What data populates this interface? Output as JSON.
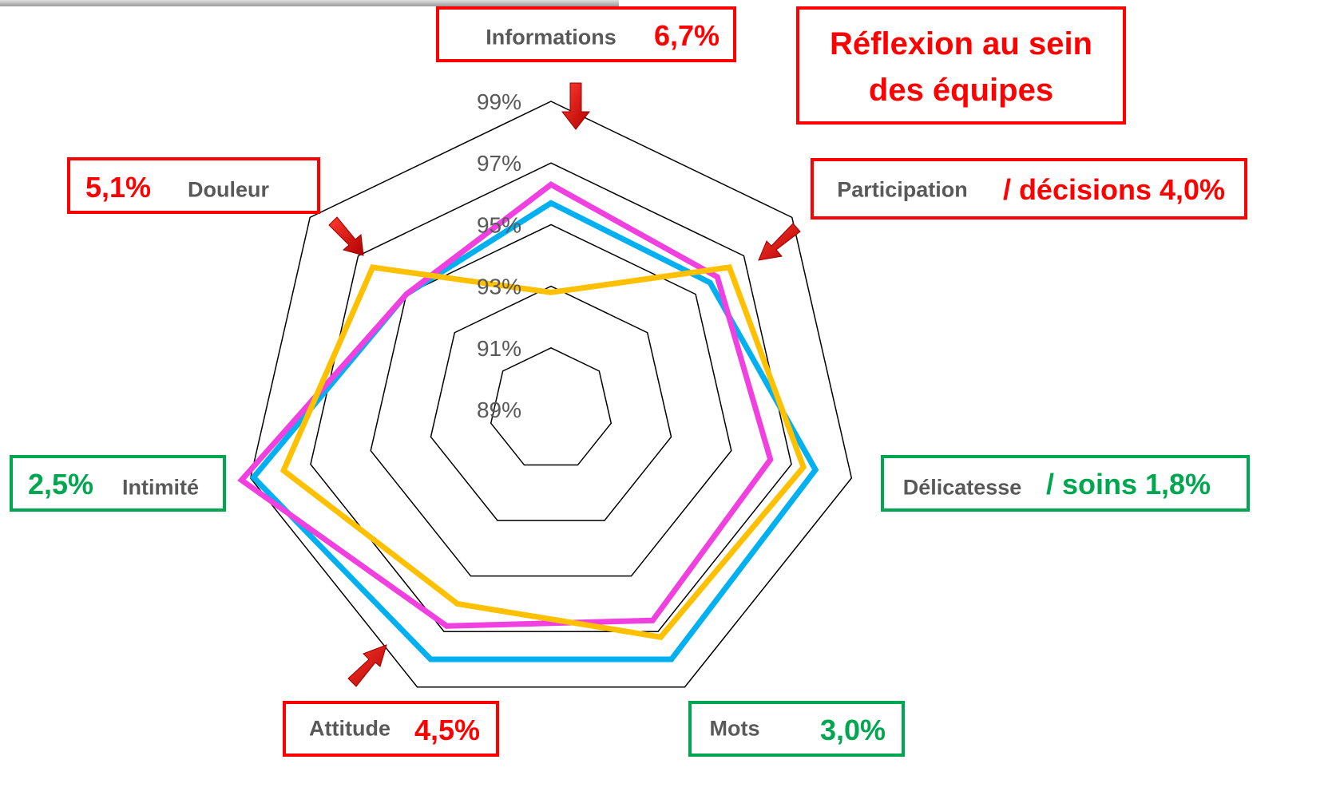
{
  "chart_data": {
    "type": "radar",
    "title": "Réflexion au sein des équipes",
    "categories": [
      "Informations",
      "Participation",
      "Délicatesse",
      "Mots",
      "Attitude",
      "Intimité",
      "Douleur"
    ],
    "annotations": [
      {
        "text": "6,7%",
        "color": "#ff0000"
      },
      {
        "text": "/ décisions 4,0%",
        "color": "#ff0000"
      },
      {
        "text": "/ soins 1,8%",
        "color": "#00a650"
      },
      {
        "text": "3,0%",
        "color": "#00a650"
      },
      {
        "text": "4,5%",
        "color": "#ff0000"
      },
      {
        "text": "2,5%",
        "color": "#00a650"
      },
      {
        "text": "5,1%",
        "color": "#ff0000"
      }
    ],
    "ylim": [
      89,
      99
    ],
    "yticks": [
      {
        "value": 89,
        "label": "89%"
      },
      {
        "value": 91,
        "label": "91%"
      },
      {
        "value": 93,
        "label": "93%"
      },
      {
        "value": 95,
        "label": "95%"
      },
      {
        "value": 97,
        "label": "97%"
      },
      {
        "value": 99,
        "label": "99%"
      }
    ],
    "series": [
      {
        "color": "#00b0f0",
        "values": [
          95.7,
          95.6,
          97.8,
          98.0,
          98.0,
          98.9,
          95.0
        ]
      },
      {
        "color": "#f040e0",
        "values": [
          96.3,
          95.9,
          96.3,
          96.6,
          96.8,
          99.3,
          95.0
        ]
      },
      {
        "color": "#ffc000",
        "values": [
          92.8,
          96.4,
          97.4,
          97.2,
          96.0,
          97.9,
          96.4
        ]
      }
    ]
  }
}
